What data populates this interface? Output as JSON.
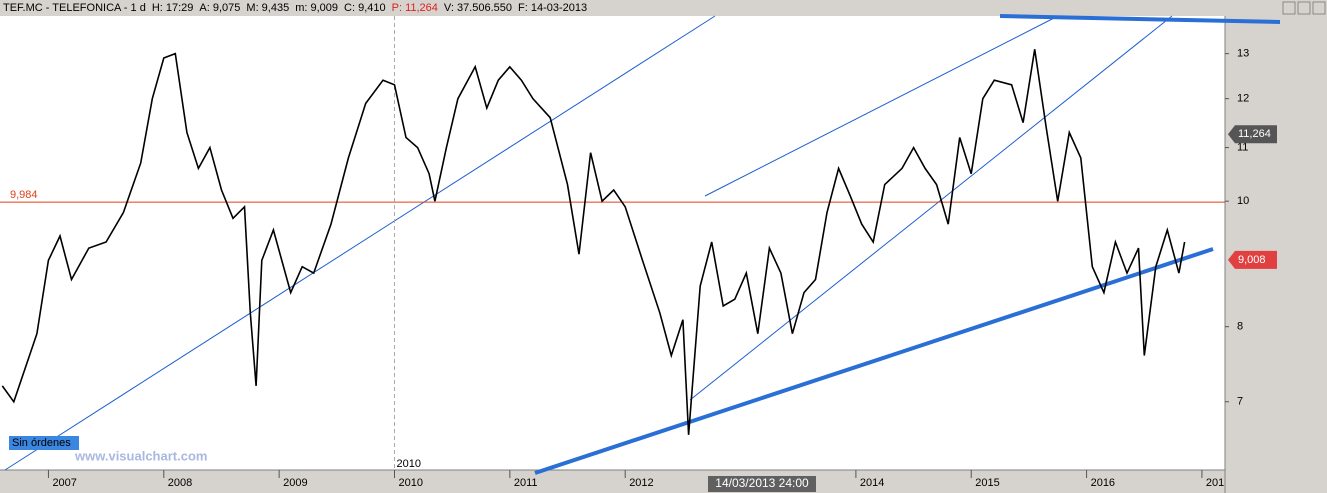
{
  "chart_data": {
    "type": "line",
    "header": [
      "TEF.MC - TELEFONICA - 1 d",
      "H: 17:29",
      "A: 9,075",
      "M: 9,435",
      "m: 9,009",
      "C: 9,410",
      "P: 11,264",
      "V: 37.506.550",
      "F: 14-03-2013"
    ],
    "x": [
      2006.6,
      2006.7,
      2006.9,
      2007.0,
      2007.1,
      2007.2,
      2007.35,
      2007.5,
      2007.65,
      2007.8,
      2007.9,
      2008.0,
      2008.1,
      2008.2,
      2008.3,
      2008.4,
      2008.5,
      2008.6,
      2008.7,
      2008.75,
      2008.8,
      2008.85,
      2008.95,
      2009.1,
      2009.2,
      2009.3,
      2009.45,
      2009.6,
      2009.75,
      2009.9,
      2010.0,
      2010.1,
      2010.2,
      2010.3,
      2010.35,
      2010.45,
      2010.55,
      2010.7,
      2010.8,
      2010.9,
      2011.0,
      2011.1,
      2011.2,
      2011.35,
      2011.5,
      2011.6,
      2011.7,
      2011.8,
      2011.9,
      2012.0,
      2012.15,
      2012.3,
      2012.4,
      2012.5,
      2012.55,
      2012.65,
      2012.75,
      2012.85,
      2012.95,
      2013.05,
      2013.15,
      2013.25,
      2013.35,
      2013.45,
      2013.55,
      2013.65,
      2013.75,
      2013.85,
      2013.95,
      2014.05,
      2014.15,
      2014.25,
      2014.4,
      2014.5,
      2014.6,
      2014.7,
      2014.8,
      2014.9,
      2015.0,
      2015.1,
      2015.2,
      2015.35,
      2015.45,
      2015.55,
      2015.65,
      2015.75,
      2015.85,
      2015.95,
      2016.05,
      2016.15,
      2016.25,
      2016.35,
      2016.45,
      2016.5,
      2016.6,
      2016.7,
      2016.8,
      2016.85
    ],
    "values": [
      7.2,
      7.0,
      7.9,
      9.0,
      9.4,
      8.7,
      9.2,
      9.3,
      9.8,
      10.7,
      12.0,
      12.9,
      13.0,
      11.3,
      10.6,
      11.0,
      10.2,
      9.7,
      9.9,
      8.2,
      7.2,
      9.0,
      9.5,
      8.5,
      8.9,
      8.8,
      9.6,
      10.8,
      11.9,
      12.4,
      12.3,
      11.2,
      11.0,
      10.5,
      10.0,
      11.0,
      12.0,
      12.7,
      11.8,
      12.4,
      12.7,
      12.4,
      12.0,
      11.6,
      10.3,
      9.1,
      10.9,
      10.0,
      10.2,
      9.9,
      9.0,
      8.2,
      7.6,
      8.1,
      6.6,
      8.6,
      9.3,
      8.3,
      8.4,
      8.8,
      7.9,
      9.2,
      8.8,
      7.9,
      8.5,
      8.7,
      9.8,
      10.6,
      10.1,
      9.6,
      9.3,
      10.3,
      10.6,
      11.0,
      10.6,
      10.3,
      9.6,
      11.2,
      10.5,
      12.0,
      12.4,
      12.3,
      11.5,
      13.1,
      11.4,
      10.0,
      11.3,
      10.8,
      8.9,
      8.5,
      9.3,
      8.8,
      9.2,
      7.6,
      8.9,
      9.5,
      8.8,
      9.3
    ],
    "color": "#000000",
    "log_y": true,
    "xlim": [
      2006.58,
      2017.2
    ],
    "xticks": [
      2007,
      2008,
      2009,
      2010,
      2011,
      2012,
      2014,
      2015,
      2016,
      {
        "value": 2017,
        "label": "201"
      }
    ],
    "ylim": [
      6.2,
      13.9
    ],
    "yticks": [
      7,
      8,
      10,
      11,
      12,
      13
    ],
    "hline": {
      "value": 9.984,
      "label": "9,984",
      "color": "#e0401a"
    },
    "price_tags": [
      {
        "value": 11.264,
        "label": "11,264",
        "color": "#555555"
      },
      {
        "value": 9.008,
        "label": "9,008",
        "color": "#e04040"
      }
    ],
    "cursor": {
      "value": 2010,
      "label": "2010"
    },
    "cursor_date": "14/03/2013 24:00",
    "status": "Sin órdenes",
    "watermark": "www.visualchart.com"
  }
}
